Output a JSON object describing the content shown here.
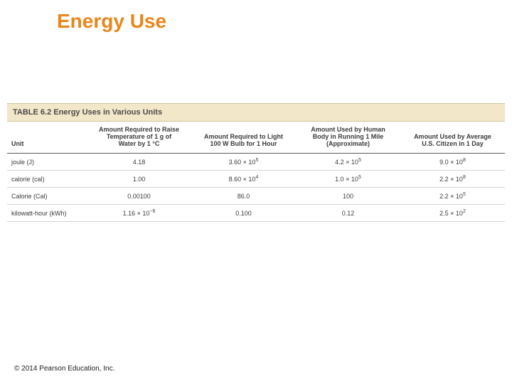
{
  "slide": {
    "title": "Energy Use",
    "title_color": "#e9861a",
    "title_fontsize": 28,
    "background_color": "#ffffff"
  },
  "table": {
    "caption": "TABLE 6.2  Energy Uses in Various Units",
    "caption_bg": "#f3e7c9",
    "caption_border": "#cfc4a2",
    "header_border_bottom": "#5a5a5a",
    "row_border": "#d5d5d5",
    "font_color": "#3a3a3a",
    "columns": [
      {
        "key": "unit",
        "label_lines": [
          "Unit"
        ],
        "align": "left",
        "width_pct": 16
      },
      {
        "key": "c1",
        "label_lines": [
          "Amount Required to Raise",
          "Temperature of 1 g of",
          "Water by 1 °C"
        ],
        "align": "center",
        "width_pct": 21
      },
      {
        "key": "c2",
        "label_lines": [
          "Amount Required to Light",
          "100 W Bulb for 1 Hour"
        ],
        "align": "center",
        "width_pct": 21
      },
      {
        "key": "c3",
        "label_lines": [
          "Amount Used by Human",
          "Body in Running 1 Mile",
          "(Approximate)"
        ],
        "align": "center",
        "width_pct": 21
      },
      {
        "key": "c4",
        "label_lines": [
          "Amount Used by Average",
          "U.S. Citizen in 1 Day"
        ],
        "align": "center",
        "width_pct": 21
      }
    ],
    "rows": [
      {
        "unit": "joule (J)",
        "c1": {
          "base": "4.18"
        },
        "c2": {
          "base": "3.60 × 10",
          "exp": "5"
        },
        "c3": {
          "base": "4.2 × 10",
          "exp": "5"
        },
        "c4": {
          "base": "9.0 × 10",
          "exp": "8"
        }
      },
      {
        "unit": "calorie (cal)",
        "c1": {
          "base": "1.00"
        },
        "c2": {
          "base": "8.60 × 10",
          "exp": "4"
        },
        "c3": {
          "base": "1.0 × 10",
          "exp": "5"
        },
        "c4": {
          "base": "2.2 × 10",
          "exp": "8"
        }
      },
      {
        "unit": "Calorie (Cal)",
        "c1": {
          "base": "0.00100"
        },
        "c2": {
          "base": "86.0"
        },
        "c3": {
          "base": "100"
        },
        "c4": {
          "base": "2.2 × 10",
          "exp": "5"
        }
      },
      {
        "unit": "kilowatt-hour (kWh)",
        "c1": {
          "base": "1.16 × 10",
          "exp": "−6"
        },
        "c2": {
          "base": "0.100"
        },
        "c3": {
          "base": "0.12"
        },
        "c4": {
          "base": "2.5 × 10",
          "exp": "2"
        }
      }
    ]
  },
  "footer": {
    "text": "© 2014 Pearson Education, Inc."
  }
}
